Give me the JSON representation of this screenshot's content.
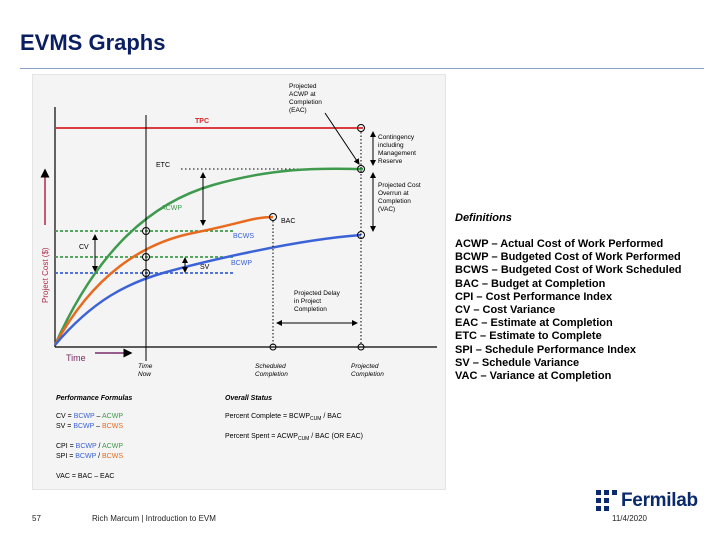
{
  "slide": {
    "title": "EVMS Graphs",
    "page_number": "57",
    "author_footer": "Rich Marcum | Introduction to EVM",
    "date": "11/4/2020",
    "logo_text": "Fermilab"
  },
  "graph": {
    "y_axis_label": "Project Cost ($)",
    "x_axis_label": "Time",
    "labels": {
      "tpc": "TPC",
      "etc": "ETC",
      "acwp": "ACWP",
      "bac": "BAC",
      "bcws": "BCWS",
      "bcwp": "BCWP",
      "cv": "CV",
      "sv": "SV",
      "time_now": [
        "Time",
        "Now"
      ],
      "scheduled_completion": [
        "Scheduled",
        "Completion"
      ],
      "projected_completion": [
        "Projected",
        "Completion"
      ],
      "projected_acwp": [
        "Projected",
        "ACWP at",
        "Completion",
        "(EAC)"
      ],
      "contingency": [
        "Contingency",
        "including",
        "Management",
        "Reserve"
      ],
      "projected_overrun": [
        "Projected Cost",
        "Overrun at",
        "Completion",
        "(VAC)"
      ],
      "projected_delay": [
        "Projected Delay",
        "in Project",
        "Completion"
      ]
    },
    "colors": {
      "tpc": "#d6252a",
      "acwp": "#3f9a4e",
      "bcws": "#e86a1f",
      "bcwp": "#3b62d6",
      "axis_label": "#b02a4a",
      "time_label": "#7a2b66"
    },
    "performance_formulas": {
      "title": "Performance Formulas",
      "cv": {
        "lhs": "CV = ",
        "bcwp": "BCWP",
        "op": " – ",
        "rhs": "ACWP"
      },
      "sv": {
        "lhs": "SV = ",
        "bcwp": "BCWP",
        "op": " – ",
        "rhs": "BCWS"
      },
      "cpi": {
        "lhs": "CPI = ",
        "bcwp": "BCWP",
        "op": " / ",
        "rhs": "ACWP"
      },
      "spi": {
        "lhs": "SPI = ",
        "bcwp": "BCWP",
        "op": " / ",
        "rhs": "BCWS"
      },
      "vac": "VAC = BAC – EAC"
    },
    "overall_status": {
      "title": "Overall Status",
      "percent_complete": {
        "text": "Percent Complete = BCWP",
        "sub": "CUM",
        "tail": " / BAC"
      },
      "percent_spent": {
        "text": "Percent Spent = ACWP",
        "sub": "CUM",
        "tail": " / BAC (OR EAC)"
      }
    }
  },
  "definitions": {
    "title": "Definitions",
    "items": [
      "ACWP – Actual Cost of Work Performed",
      "BCWP – Budgeted Cost of Work Performed",
      "BCWS – Budgeted Cost of Work Scheduled",
      "BAC – Budget at Completion",
      "CPI – Cost Performance Index",
      "CV – Cost Variance",
      "EAC – Estimate at Completion",
      "ETC – Estimate to Complete",
      "SPI – Schedule Performance Index",
      "SV – Schedule Variance",
      "VAC – Variance at Completion"
    ]
  }
}
